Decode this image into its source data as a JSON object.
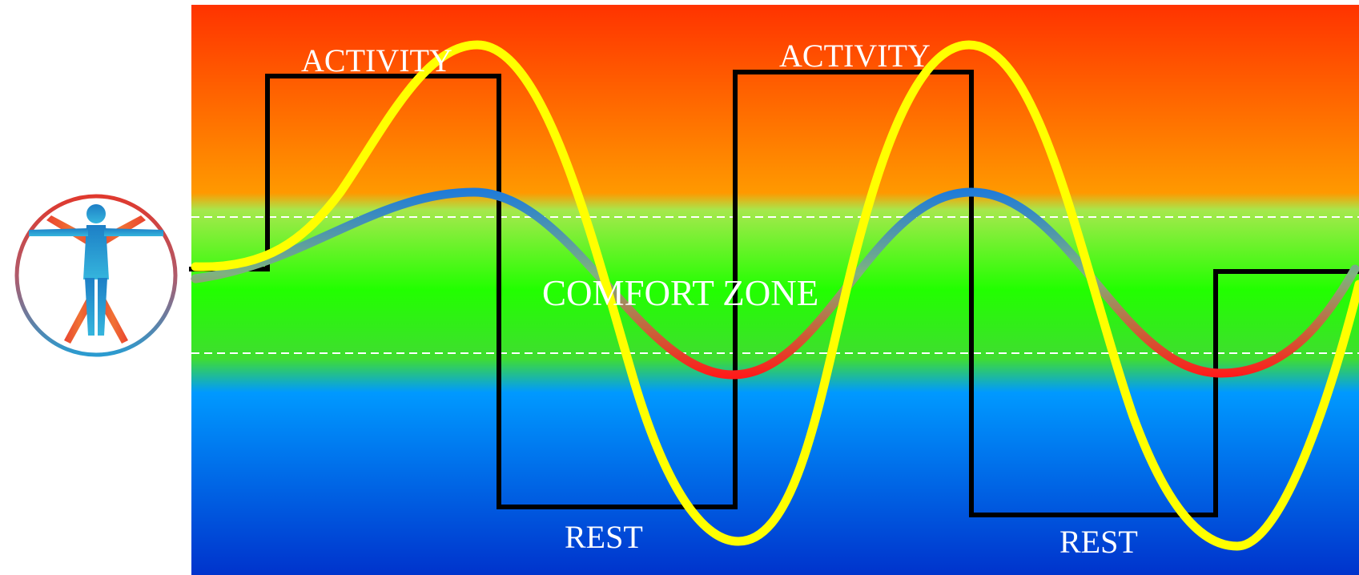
{
  "labels": {
    "activity_1": "ACTIVITY",
    "activity_2": "ACTIVITY",
    "comfort_zone": "COMFORT ZONE",
    "rest_1": "REST",
    "rest_2": "REST"
  },
  "colors": {
    "band_top": "#ff3300",
    "band_orange": "#ff9900",
    "band_green": "#22ff00",
    "band_blue": "#0099ff",
    "band_bottom": "#0033cc",
    "activity_rest_line": "#000000",
    "large_wave": "#ffff00",
    "small_wave_high": "#1f7bd9",
    "small_wave_mid": "#7fb27f",
    "small_wave_low": "#ff1a1a",
    "comfort_boundary": "#ffffff"
  },
  "icons": {
    "logo": "vitruvian-man-icon"
  }
}
